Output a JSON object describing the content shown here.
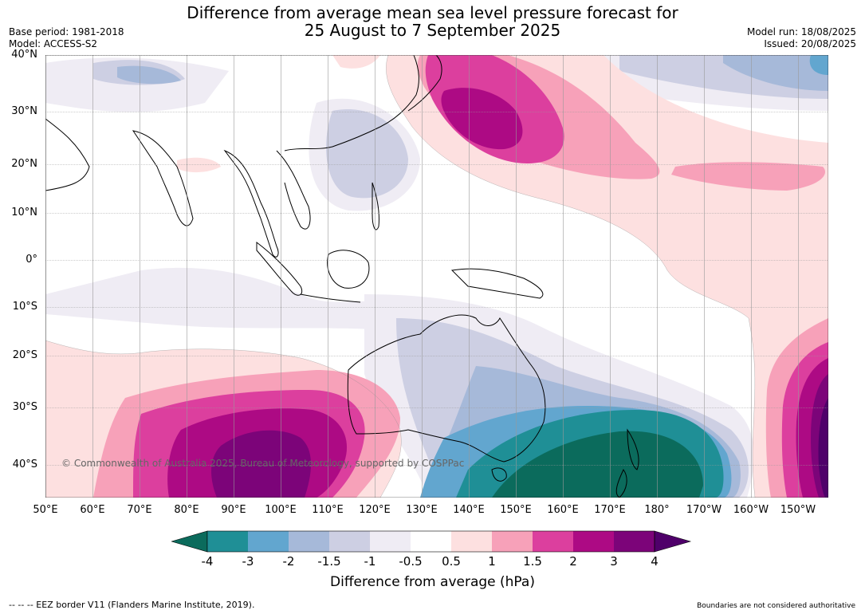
{
  "title_line1": "Difference from average mean sea level pressure forecast for",
  "title_line2": "25 August to 7 September 2025",
  "base_period": "Base period: 1981-2018",
  "model": "Model: ACCESS-S2",
  "model_run": "Model run: 18/08/2025",
  "issued": "Issued: 20/08/2025",
  "lat_labels": [
    "40°N",
    "30°N",
    "20°N",
    "10°N",
    "0°",
    "10°S",
    "20°S",
    "30°S",
    "40°S"
  ],
  "lon_labels": [
    "50°E",
    "60°E",
    "70°E",
    "80°E",
    "90°E",
    "100°E",
    "110°E",
    "120°E",
    "130°E",
    "140°E",
    "150°E",
    "160°E",
    "170°E",
    "180°",
    "170°W",
    "160°W",
    "150°W"
  ],
  "colorbar": {
    "ticks": [
      "-4",
      "-3",
      "-2",
      "-1.5",
      "-1",
      "-0.5",
      "0.5",
      "1",
      "1.5",
      "2",
      "3",
      "4"
    ],
    "colors": [
      "#0b6b5c",
      "#1f8f96",
      "#62a6cf",
      "#a6b9d9",
      "#cdcfe3",
      "#efecf4",
      "#ffffff",
      "#fde0e0",
      "#f7a1b9",
      "#dc3f9e",
      "#ad0a84",
      "#7c0479",
      "#4f006a"
    ],
    "label": "Difference from average (hPa)"
  },
  "copyright": "© Commonwealth of Australia 2025, Bureau of Meteorology, supported by COSPPac",
  "footer_left": "--  --  -- EEZ border V11 (Flanders Marine Institute, 2019).",
  "footer_right": "Boundaries are not considered authoritative"
}
